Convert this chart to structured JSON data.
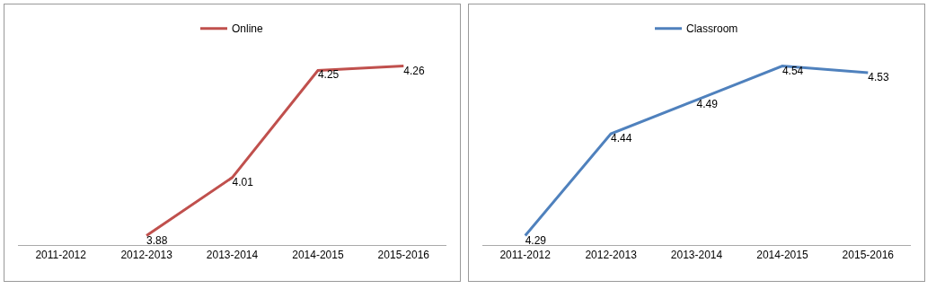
{
  "chart_data": [
    {
      "type": "line",
      "categories": [
        "2011-2012",
        "2012-2013",
        "2013-2014",
        "2014-2015",
        "2015-2016"
      ],
      "series": [
        {
          "name": "Online",
          "color": "#c0504d",
          "values": [
            null,
            3.88,
            4.01,
            4.25,
            4.26
          ]
        }
      ],
      "data_labels": true,
      "legend": "top",
      "grid": false,
      "marker": "none",
      "line_style": "solid",
      "tick_labels": "x"
    },
    {
      "type": "line",
      "categories": [
        "2011-2012",
        "2012-2013",
        "2013-2014",
        "2014-2015",
        "2015-2016"
      ],
      "series": [
        {
          "name": "Classroom",
          "color": "#4f81bd",
          "values": [
            4.29,
            4.44,
            4.49,
            4.54,
            4.53
          ]
        }
      ],
      "data_labels": true,
      "legend": "top",
      "grid": false,
      "marker": "none",
      "line_style": "solid",
      "tick_labels": "x"
    }
  ]
}
